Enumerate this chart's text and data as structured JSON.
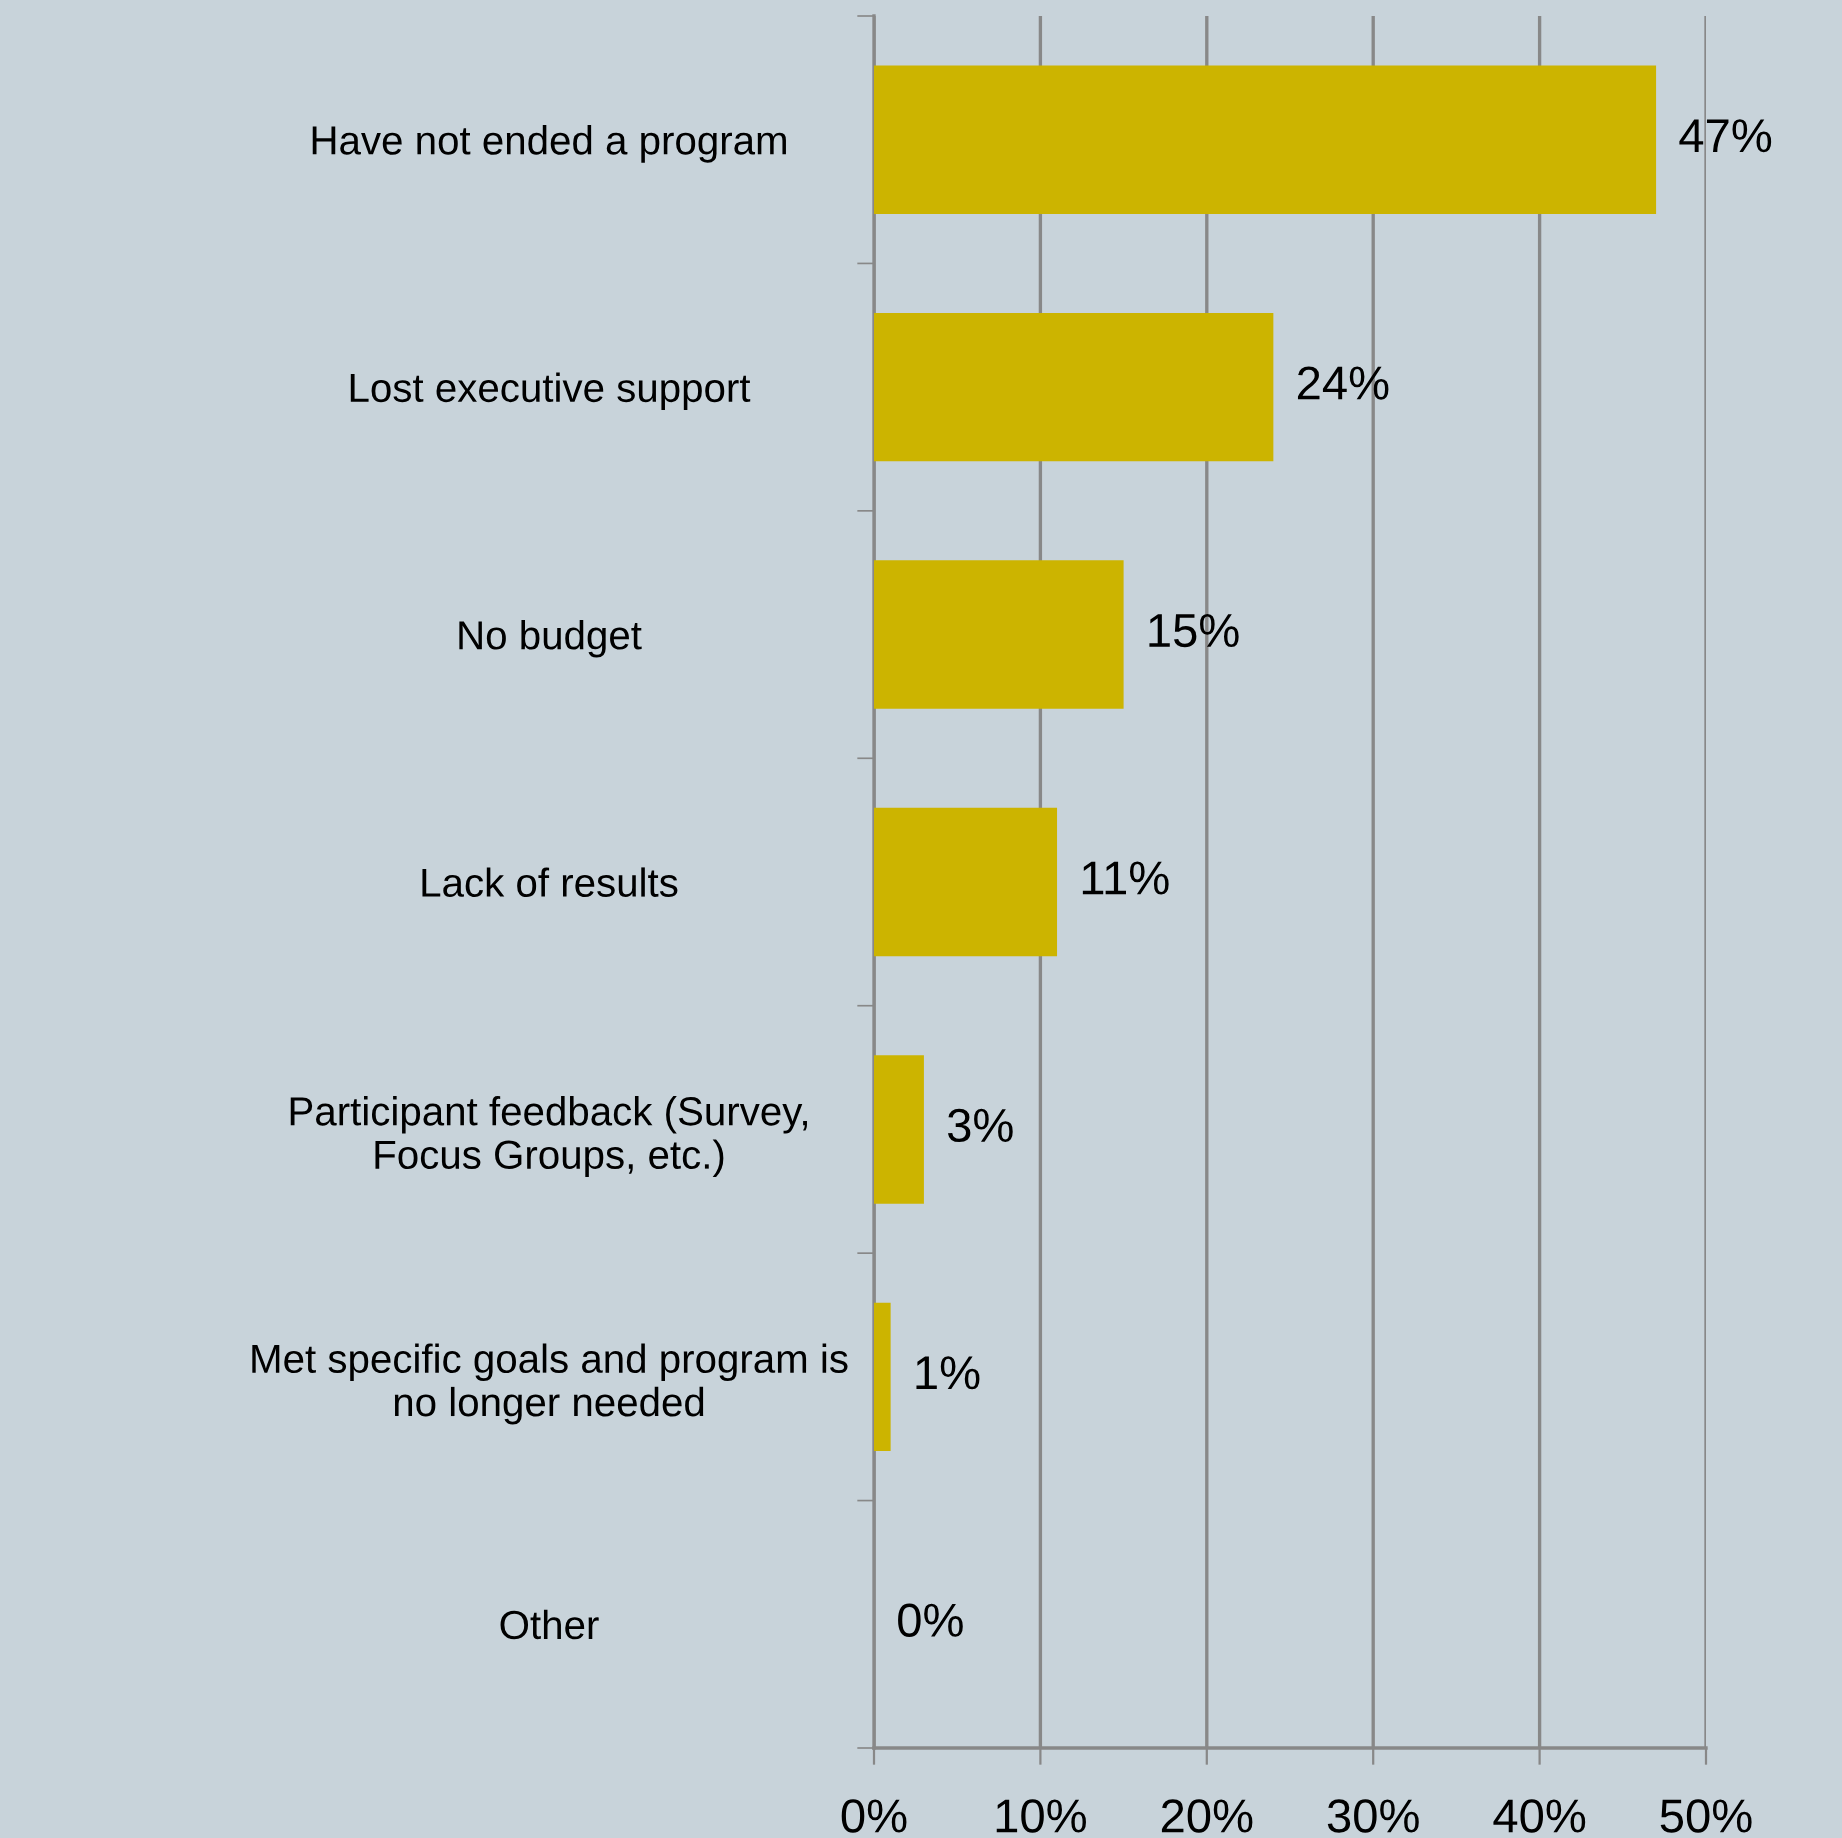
{
  "chart_data": {
    "type": "bar",
    "orientation": "horizontal",
    "categories": [
      "Have not ended a program",
      "Lost executive support",
      "No budget",
      "Lack of results",
      "Participant feedback (Survey,\nFocus Groups, etc.)",
      "Met specific goals and program is\nno longer needed",
      "Other"
    ],
    "values": [
      47,
      24,
      15,
      11,
      3,
      1,
      0
    ],
    "color": "#ccb400",
    "value_labels": [
      "47%",
      "24%",
      "15%",
      "11%",
      "3%",
      "1%",
      "0%"
    ],
    "xlim": [
      0,
      50
    ],
    "xticks": [
      {
        "value": 0,
        "label": "0%"
      },
      {
        "value": 10,
        "label": "10%"
      },
      {
        "value": 20,
        "label": "20%"
      },
      {
        "value": 30,
        "label": "30%"
      },
      {
        "value": 40,
        "label": "40%"
      },
      {
        "value": 50,
        "label": "50%"
      }
    ],
    "grid": "x",
    "legend": false
  }
}
